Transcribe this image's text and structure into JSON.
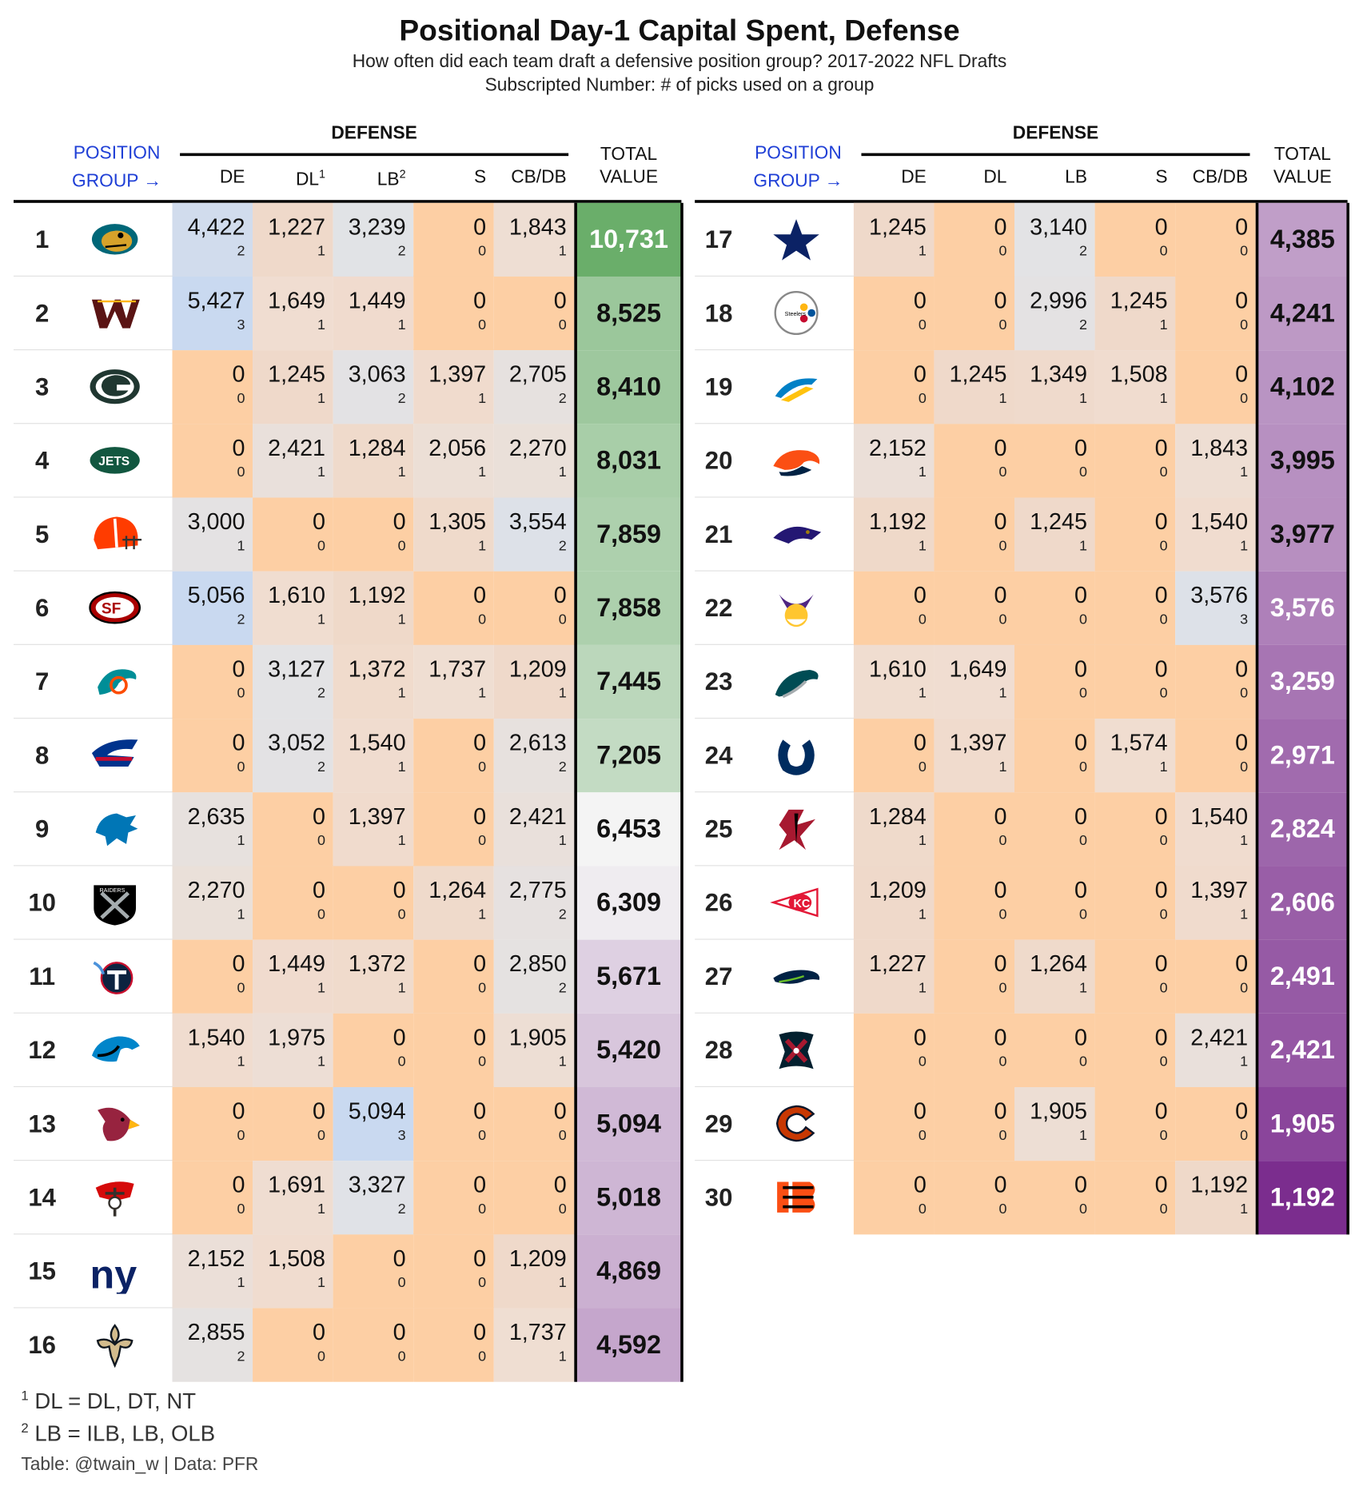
{
  "title": "Positional Day-1 Capital Spent, Defense",
  "subtitle": "How often did each team draft a defensive position group? 2017-2022 NFL Drafts",
  "subtitle2": "Subscripted Number: # of picks used on a group",
  "header": {
    "position_group_line1": "POSITION",
    "position_group_line2": "GROUP →",
    "group_label": "DEFENSE",
    "total_line1": "TOTAL",
    "total_line2": "VALUE",
    "left_columns": [
      {
        "label": "DE",
        "sup": ""
      },
      {
        "label": "DL",
        "sup": "1"
      },
      {
        "label": "LB",
        "sup": "2"
      },
      {
        "label": "S",
        "sup": ""
      },
      {
        "label": "CB/DB",
        "sup": ""
      }
    ],
    "right_columns": [
      {
        "label": "DE",
        "sup": ""
      },
      {
        "label": "DL",
        "sup": ""
      },
      {
        "label": "LB",
        "sup": ""
      },
      {
        "label": "S",
        "sup": ""
      },
      {
        "label": "CB/DB",
        "sup": ""
      }
    ]
  },
  "footnotes": [
    {
      "sup": "1",
      "text": " DL = DL, DT, NT"
    },
    {
      "sup": "2",
      "text": " LB = ILB, LB, OLB"
    }
  ],
  "source": "Table: @twain_w | Data: PFR",
  "colors": {
    "cell_zero": "#fdcfa4",
    "cell_low": "#f0ddd0",
    "cell_mid": "#e2e3e6",
    "cell_high": "#c9d9f0",
    "total_green": "#6aae6a",
    "total_purple": "#7b2d8e",
    "position_group_blue": "#1f3fd6"
  },
  "chart_data": {
    "type": "table",
    "columns": [
      "DE",
      "DL",
      "LB",
      "S",
      "CB/DB",
      "TOTAL VALUE"
    ],
    "rows": [
      {
        "rank": "1",
        "team": "jaguars-logo",
        "values": [
          4422,
          1227,
          3239,
          0,
          1843
        ],
        "picks": [
          2,
          1,
          2,
          0,
          1
        ],
        "total": 10731
      },
      {
        "rank": "2",
        "team": "commanders-logo",
        "values": [
          5427,
          1649,
          1449,
          0,
          0
        ],
        "picks": [
          3,
          1,
          1,
          0,
          0
        ],
        "total": 8525
      },
      {
        "rank": "3",
        "team": "packers-logo",
        "values": [
          0,
          1245,
          3063,
          1397,
          2705
        ],
        "picks": [
          0,
          1,
          2,
          1,
          2
        ],
        "total": 8410
      },
      {
        "rank": "4",
        "team": "jets-logo",
        "values": [
          0,
          2421,
          1284,
          2056,
          2270
        ],
        "picks": [
          0,
          1,
          1,
          1,
          1
        ],
        "total": 8031
      },
      {
        "rank": "5",
        "team": "browns-logo",
        "values": [
          3000,
          0,
          0,
          1305,
          3554
        ],
        "picks": [
          1,
          0,
          0,
          1,
          2
        ],
        "total": 7859
      },
      {
        "rank": "6",
        "team": "49ers-logo",
        "values": [
          5056,
          1610,
          1192,
          0,
          0
        ],
        "picks": [
          2,
          1,
          1,
          0,
          0
        ],
        "total": 7858
      },
      {
        "rank": "7",
        "team": "dolphins-logo",
        "values": [
          0,
          3127,
          1372,
          1737,
          1209
        ],
        "picks": [
          0,
          2,
          1,
          1,
          1
        ],
        "total": 7445
      },
      {
        "rank": "8",
        "team": "bills-logo",
        "values": [
          0,
          3052,
          1540,
          0,
          2613
        ],
        "picks": [
          0,
          2,
          1,
          0,
          2
        ],
        "total": 7205
      },
      {
        "rank": "9",
        "team": "lions-logo",
        "values": [
          2635,
          0,
          1397,
          0,
          2421
        ],
        "picks": [
          1,
          0,
          1,
          0,
          1
        ],
        "total": 6453
      },
      {
        "rank": "10",
        "team": "raiders-logo",
        "values": [
          2270,
          0,
          0,
          1264,
          2775
        ],
        "picks": [
          1,
          0,
          0,
          1,
          2
        ],
        "total": 6309
      },
      {
        "rank": "11",
        "team": "titans-logo",
        "values": [
          0,
          1449,
          1372,
          0,
          2850
        ],
        "picks": [
          0,
          1,
          1,
          0,
          2
        ],
        "total": 5671
      },
      {
        "rank": "12",
        "team": "panthers-logo",
        "values": [
          1540,
          1975,
          0,
          0,
          1905
        ],
        "picks": [
          1,
          1,
          0,
          0,
          1
        ],
        "total": 5420
      },
      {
        "rank": "13",
        "team": "cardinals-logo",
        "values": [
          0,
          0,
          5094,
          0,
          0
        ],
        "picks": [
          0,
          0,
          3,
          0,
          0
        ],
        "total": 5094
      },
      {
        "rank": "14",
        "team": "buccaneers-logo",
        "values": [
          0,
          1691,
          3327,
          0,
          0
        ],
        "picks": [
          0,
          1,
          2,
          0,
          0
        ],
        "total": 5018
      },
      {
        "rank": "15",
        "team": "giants-logo",
        "values": [
          2152,
          1508,
          0,
          0,
          1209
        ],
        "picks": [
          1,
          1,
          0,
          0,
          1
        ],
        "total": 4869
      },
      {
        "rank": "16",
        "team": "saints-logo",
        "values": [
          2855,
          0,
          0,
          0,
          1737
        ],
        "picks": [
          2,
          0,
          0,
          0,
          1
        ],
        "total": 4592
      },
      {
        "rank": "17",
        "team": "cowboys-logo",
        "values": [
          1245,
          0,
          3140,
          0,
          0
        ],
        "picks": [
          1,
          0,
          2,
          0,
          0
        ],
        "total": 4385
      },
      {
        "rank": "18",
        "team": "steelers-logo",
        "values": [
          0,
          0,
          2996,
          1245,
          0
        ],
        "picks": [
          0,
          0,
          2,
          1,
          0
        ],
        "total": 4241
      },
      {
        "rank": "19",
        "team": "chargers-logo",
        "values": [
          0,
          1245,
          1349,
          1508,
          0
        ],
        "picks": [
          0,
          1,
          1,
          1,
          0
        ],
        "total": 4102
      },
      {
        "rank": "20",
        "team": "broncos-logo",
        "values": [
          2152,
          0,
          0,
          0,
          1843
        ],
        "picks": [
          1,
          0,
          0,
          0,
          1
        ],
        "total": 3995
      },
      {
        "rank": "21",
        "team": "ravens-logo",
        "values": [
          1192,
          0,
          1245,
          0,
          1540
        ],
        "picks": [
          1,
          0,
          1,
          0,
          1
        ],
        "total": 3977
      },
      {
        "rank": "22",
        "team": "vikings-logo",
        "values": [
          0,
          0,
          0,
          0,
          3576
        ],
        "picks": [
          0,
          0,
          0,
          0,
          3
        ],
        "total": 3576
      },
      {
        "rank": "23",
        "team": "eagles-logo",
        "values": [
          1610,
          1649,
          0,
          0,
          0
        ],
        "picks": [
          1,
          1,
          0,
          0,
          0
        ],
        "total": 3259
      },
      {
        "rank": "24",
        "team": "colts-logo",
        "values": [
          0,
          1397,
          0,
          1574,
          0
        ],
        "picks": [
          0,
          1,
          0,
          1,
          0
        ],
        "total": 2971
      },
      {
        "rank": "25",
        "team": "falcons-logo",
        "values": [
          1284,
          0,
          0,
          0,
          1540
        ],
        "picks": [
          1,
          0,
          0,
          0,
          1
        ],
        "total": 2824
      },
      {
        "rank": "26",
        "team": "chiefs-logo",
        "values": [
          1209,
          0,
          0,
          0,
          1397
        ],
        "picks": [
          1,
          0,
          0,
          0,
          1
        ],
        "total": 2606
      },
      {
        "rank": "27",
        "team": "seahawks-logo",
        "values": [
          1227,
          0,
          1264,
          0,
          0
        ],
        "picks": [
          1,
          0,
          1,
          0,
          0
        ],
        "total": 2491
      },
      {
        "rank": "28",
        "team": "texans-logo",
        "values": [
          0,
          0,
          0,
          0,
          2421
        ],
        "picks": [
          0,
          0,
          0,
          0,
          1
        ],
        "total": 2421
      },
      {
        "rank": "29",
        "team": "bears-logo",
        "values": [
          0,
          0,
          1905,
          0,
          0
        ],
        "picks": [
          0,
          0,
          1,
          0,
          0
        ],
        "total": 1905
      },
      {
        "rank": "30",
        "team": "bengals-logo",
        "values": [
          0,
          0,
          0,
          0,
          1192
        ],
        "picks": [
          0,
          0,
          0,
          0,
          1
        ],
        "total": 1192
      }
    ]
  }
}
